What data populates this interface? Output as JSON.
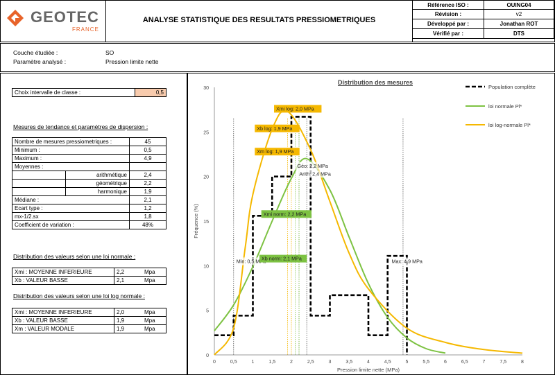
{
  "logo": {
    "brand": "GEOTEC",
    "country": "FRANCE",
    "accent_color": "#e8632a"
  },
  "title": "ANALYSE STATISTIQUE DES RESULTATS PRESSIOMETRIQUES",
  "meta": [
    {
      "label": "Référence ISO :",
      "value": "OUING04"
    },
    {
      "label": "Révision :",
      "value": "v2"
    },
    {
      "label": "Développé par :",
      "value": "Jonathan ROT"
    },
    {
      "label": "Vérifié par :",
      "value": "DTS"
    }
  ],
  "context": {
    "layer_label": "Couche étudiée :",
    "layer_value": "SO",
    "param_label": "Paramètre analysé :",
    "param_value": "Pression limite nette"
  },
  "class_interval": {
    "label": "Choix intervalle de classe :",
    "value": "0,5"
  },
  "dispersion": {
    "title": "Mesures de tendance et paramètres de dispersion :",
    "rows": [
      {
        "label": "Nombre de mesures pressiometriques  :",
        "value": "45"
      },
      {
        "label": "Minimum :",
        "value": "0,5"
      },
      {
        "label": "Maximum :",
        "value": "4,9"
      },
      {
        "label": "Moyennes :",
        "value": ""
      },
      {
        "sub": "arithmétique",
        "value": "2,4"
      },
      {
        "sub": "géométrique",
        "value": "2,2"
      },
      {
        "sub": "harmonique",
        "value": "1,9"
      },
      {
        "label": "Médiane :",
        "value": "2,1"
      },
      {
        "label": "Ecart type :",
        "value": "1,2"
      },
      {
        "label": "mx-1/2.sx",
        "value": "1,8"
      },
      {
        "label": "Coefficient de variation :",
        "value": "48%"
      }
    ]
  },
  "normal": {
    "title": "Distribution des valeurs selon une loi  normale :",
    "rows": [
      {
        "label": "Xmi : MOYENNE INFERIEURE",
        "value": "2,2",
        "unit": "Mpa"
      },
      {
        "label": "Xb : VALEUR BASSE",
        "value": "2,1",
        "unit": "Mpa"
      }
    ]
  },
  "lognormal": {
    "title": "Distribution des valeurs selon une loi  log normale :",
    "rows": [
      {
        "label": "Xmi : MOYENNE INFERIEURE",
        "value": "2,0",
        "unit": "Mpa"
      },
      {
        "label": "Xb : VALEUR BASSE",
        "value": "1,9",
        "unit": "Mpa"
      },
      {
        "label": "Xm : VALEUR MODALE",
        "value": "1,9",
        "unit": "Mpa"
      }
    ]
  },
  "chart_data": {
    "type": "line",
    "title": "Distribution des mesures",
    "ylabel": "Fréquence (%)",
    "xlabel": "Pression limite nette (MPa)",
    "xlim": [
      0,
      8
    ],
    "ylim": [
      0,
      30
    ],
    "x_ticks": [
      "0",
      "0,5",
      "1",
      "1,5",
      "2",
      "2,5",
      "3",
      "3,5",
      "4",
      "4,5",
      "5",
      "5,5",
      "6",
      "6,5",
      "7",
      "7,5",
      "8"
    ],
    "y_ticks": [
      "0",
      "5",
      "10",
      "15",
      "20",
      "25",
      "30"
    ],
    "legend": [
      "Population complète",
      "loi normale Pl*",
      "loi log-normale Pl*"
    ],
    "series": [
      {
        "name": "Population complète",
        "color": "#000000",
        "style": "dashed-step",
        "x": [
          0,
          0.5,
          0.5,
          1,
          1,
          1.5,
          1.5,
          2,
          2,
          2.5,
          2.5,
          3,
          3,
          4,
          4,
          4.5,
          4.5,
          5,
          5
        ],
        "y": [
          2.2,
          2.2,
          4.4,
          4.4,
          15.6,
          15.6,
          20,
          20,
          26.7,
          26.7,
          4.4,
          4.4,
          6.7,
          6.7,
          2.2,
          2.2,
          11.1,
          11.1,
          0
        ]
      },
      {
        "name": "loi normale Pl*",
        "color": "#7dc242",
        "x": [
          0,
          0.5,
          1,
          1.5,
          2,
          2.4,
          3,
          3.5,
          4,
          4.5,
          5,
          5.5,
          6
        ],
        "y": [
          2.7,
          5.6,
          9.9,
          15.0,
          19.8,
          22.0,
          18.5,
          13.2,
          8.0,
          4.2,
          1.9,
          0.7,
          0.2
        ]
      },
      {
        "name": "loi log-normale Pl*",
        "color": "#f5b800",
        "x": [
          0,
          0.5,
          0.8,
          1,
          1.5,
          1.9,
          2.5,
          3,
          3.5,
          4,
          5,
          6,
          7,
          8
        ],
        "y": [
          0,
          3.0,
          12.0,
          18.0,
          25.3,
          27.3,
          23.0,
          17.2,
          11.4,
          7.4,
          3.0,
          1.4,
          0.6,
          0.2
        ]
      }
    ],
    "markers": [
      {
        "label": "Min: 0,5 MPa",
        "x": 0.5,
        "style": "black-dotted"
      },
      {
        "label": "Max: 4,9 MPa",
        "x": 4.9,
        "style": "black-dotted"
      },
      {
        "label": "Géo: 2,2 MPa",
        "x": 2.2,
        "style": "black-dotted"
      },
      {
        "label": "Arith: 2,4 MPa",
        "x": 2.4,
        "style": "black-dotted"
      },
      {
        "label": "Xmi log: 2,0 MPa",
        "x": 2.0,
        "style": "orange"
      },
      {
        "label": "Xb log: 1,9 MPa",
        "x": 1.9,
        "style": "orange"
      },
      {
        "label": "Xm log: 1,9 MPa",
        "x": 1.9,
        "style": "orange"
      },
      {
        "label": "Xmi norm: 2,2 MPa",
        "x": 2.2,
        "style": "green"
      },
      {
        "label": "Xb norm: 2,1 MPa",
        "x": 2.1,
        "style": "green"
      }
    ]
  }
}
